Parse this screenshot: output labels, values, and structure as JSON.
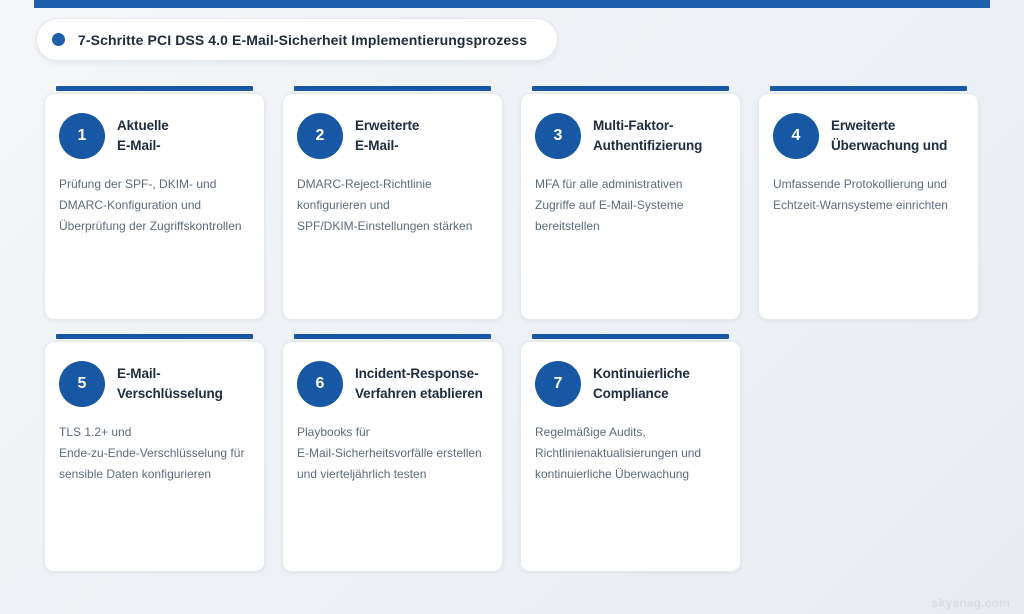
{
  "colors": {
    "accent_blue": "#1e5fae",
    "accent_dark_blue": "#1757a3",
    "title_text": "#202d3e",
    "desc_text": "#5d6b7b"
  },
  "header": {
    "title": "7-Schritte PCI DSS 4.0 E-Mail-Sicherheit Implementierungsprozess"
  },
  "cards": [
    {
      "number": "1",
      "title": "Aktuelle\nE-Mail-",
      "description": "Prüfung der SPF-, DKIM- und\nDMARC-Konfiguration und\nÜberprüfung der Zugriffskontrollen"
    },
    {
      "number": "2",
      "title": "Erweiterte\nE-Mail-",
      "description": "DMARC-Reject-Richtlinie\nkonfigurieren und\nSPF/DKIM-Einstellungen stärken"
    },
    {
      "number": "3",
      "title": "Multi-Faktor-\nAuthentifizierung",
      "description": "MFA für alle administrativen\nZugriffe auf E-Mail-Systeme\nbereitstellen"
    },
    {
      "number": "4",
      "title": "Erweiterte\nÜberwachung und",
      "description": "Umfassende Protokollierung und\nEchtzeit-Warnsysteme einrichten"
    },
    {
      "number": "5",
      "title": "E-Mail-\nVerschlüsselung",
      "description": "TLS 1.2+ und\nEnde-zu-Ende-Verschlüsselung für\nsensible Daten konfigurieren"
    },
    {
      "number": "6",
      "title": "Incident-Response-\nVerfahren etablieren",
      "description": "Playbooks für\nE-Mail-Sicherheitsvorfälle erstellen\nund vierteljährlich testen"
    },
    {
      "number": "7",
      "title": "Kontinuierliche\nCompliance",
      "description": "Regelmäßige Audits,\nRichtlinienaktualisierungen und\nkontinuierliche Überwachung"
    }
  ],
  "watermark": "skysnag.com"
}
